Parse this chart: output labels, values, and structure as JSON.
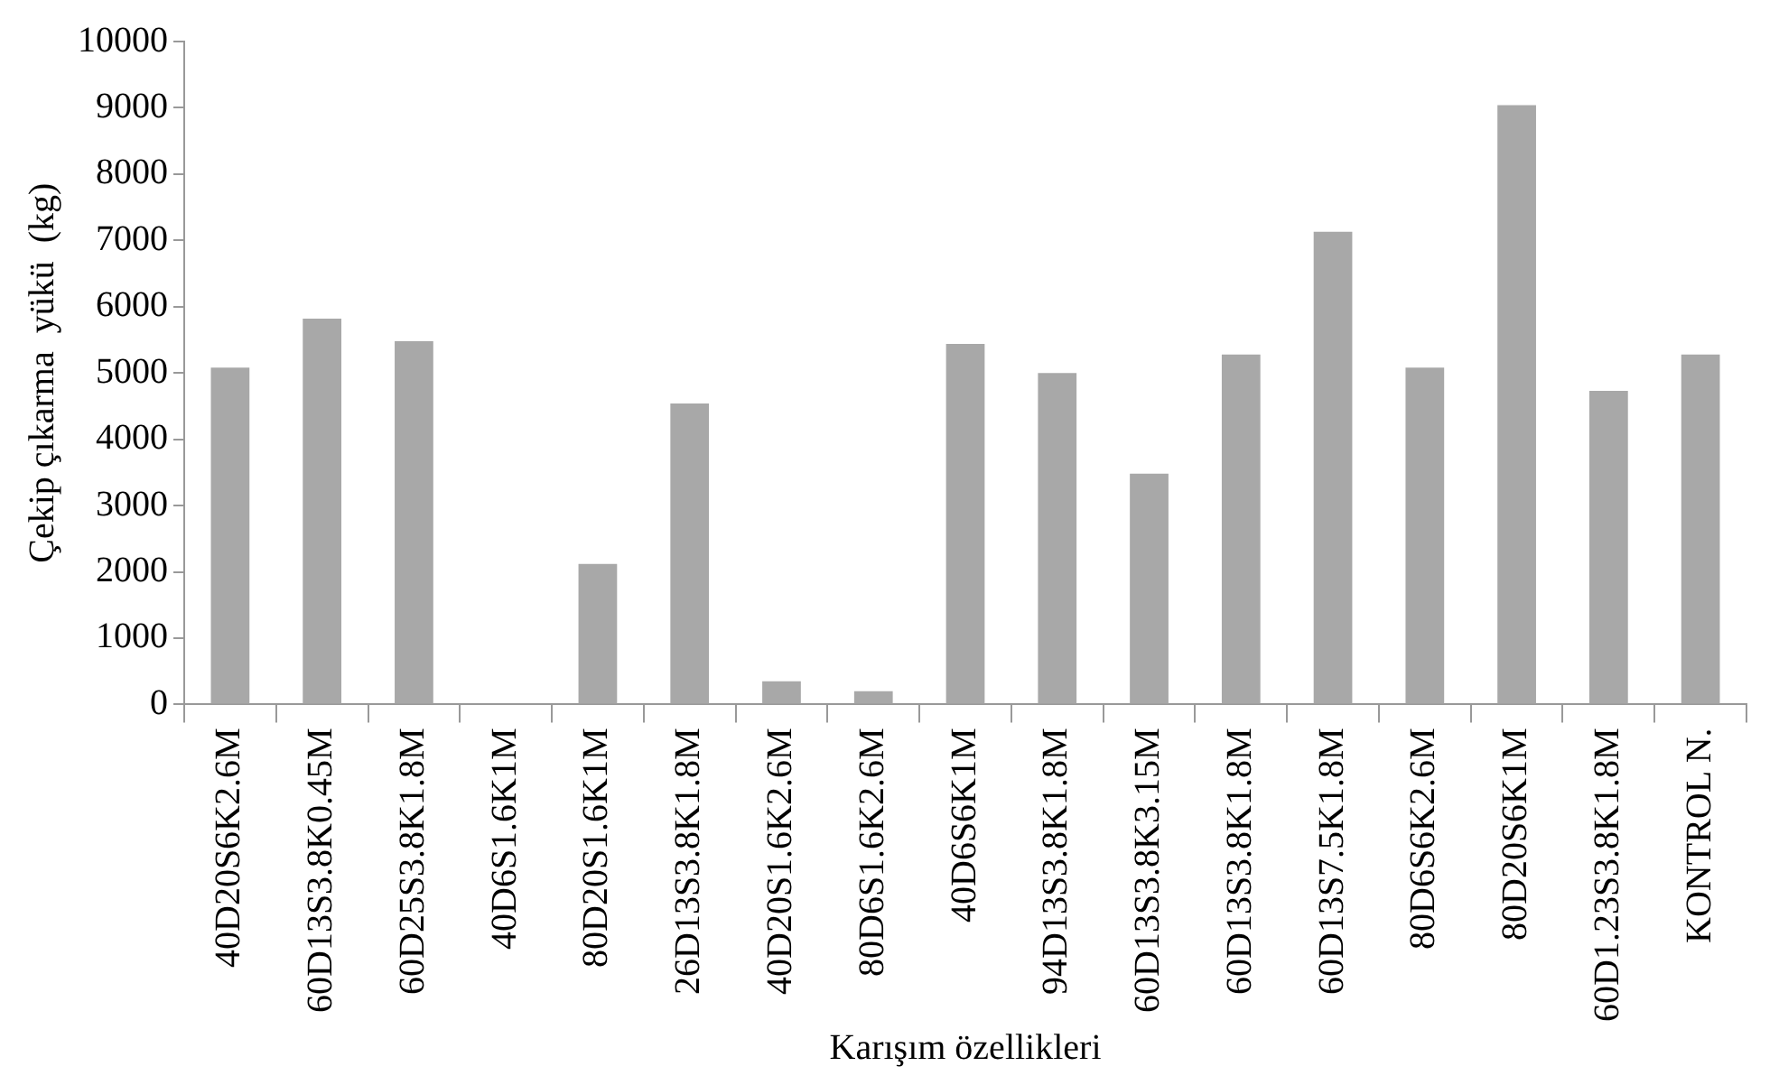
{
  "chart_data": {
    "type": "bar",
    "ylabel": "Çekip çıkarma  yükü  (kg)",
    "xlabel": "Karışım özellikleri",
    "categories": [
      "40D20S6K2.6M",
      "60D13S3.8K0.45M",
      "60D25S3.8K1.8M",
      "40D6S1.6K1M",
      "80D20S1.6K1M",
      "26D13S3.8K1.8M",
      "40D20S1.6K2.6M",
      "80D6S1.6K2.6M",
      "40D6S6K1M",
      "94D13S3.8K1.8M",
      "60D13S3.8K3.15M",
      "60D13S3.8K1.8M",
      "60D13S7.5K1.8M",
      "80D6S6K2.6M",
      "80D20S6K1M",
      "60D1.23S3.8K1.8M",
      "KONTROL N."
    ],
    "values": [
      5080,
      5820,
      5480,
      0,
      2120,
      4540,
      350,
      200,
      5440,
      5000,
      3480,
      5280,
      7130,
      5080,
      9040,
      4730,
      5280
    ],
    "color": "#a8a8a8",
    "ylim": [
      0,
      10000
    ],
    "yticks": [
      0,
      1000,
      2000,
      3000,
      4000,
      5000,
      6000,
      7000,
      8000,
      9000,
      10000
    ],
    "grid": false
  }
}
